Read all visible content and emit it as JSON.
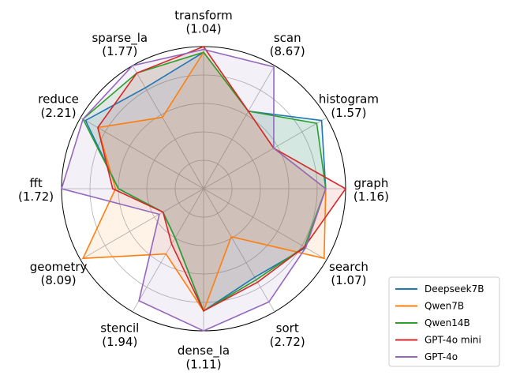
{
  "chart_data": {
    "type": "radar",
    "title": "",
    "r_range": [
      0,
      1
    ],
    "radial_grid": [
      0.2,
      0.4,
      0.6,
      0.8,
      1.0
    ],
    "grid": true,
    "legend_position": "lower-right",
    "axes": [
      {
        "name": "transform",
        "label": "(1.04)"
      },
      {
        "name": "scan",
        "label": "(8.67)"
      },
      {
        "name": "histogram",
        "label": "(1.57)"
      },
      {
        "name": "graph",
        "label": "(1.16)"
      },
      {
        "name": "search",
        "label": "(1.07)"
      },
      {
        "name": "sort",
        "label": "(2.72)"
      },
      {
        "name": "dense_la",
        "label": "(1.11)"
      },
      {
        "name": "stencil",
        "label": "(1.94)"
      },
      {
        "name": "geometry",
        "label": "(8.09)"
      },
      {
        "name": "fft",
        "label": "(1.72)"
      },
      {
        "name": "reduce",
        "label": "(2.21)"
      },
      {
        "name": "sparse_la",
        "label": "(1.77)"
      }
    ],
    "series": [
      {
        "name": "Deepseek7B",
        "color": "#1f77b4",
        "values": [
          0.96,
          0.63,
          0.96,
          0.86,
          0.83,
          0.72,
          0.86,
          0.4,
          0.33,
          0.6,
          0.96,
          0.82
        ]
      },
      {
        "name": "Qwen7B",
        "color": "#ff7f0e",
        "values": [
          0.96,
          0.63,
          0.57,
          0.86,
          0.98,
          0.39,
          0.86,
          0.53,
          0.98,
          0.62,
          0.86,
          0.58
        ]
      },
      {
        "name": "Qwen14B",
        "color": "#2ca02c",
        "values": [
          0.96,
          0.63,
          0.92,
          0.86,
          0.82,
          0.74,
          0.86,
          0.4,
          0.33,
          0.6,
          0.98,
          0.94
        ]
      },
      {
        "name": "GPT-4o mini",
        "color": "#d62728",
        "values": [
          1.0,
          0.63,
          0.57,
          1.0,
          0.82,
          0.76,
          0.86,
          0.45,
          0.33,
          0.64,
          0.86,
          0.94
        ]
      },
      {
        "name": "GPT-4o",
        "color": "#9467bd",
        "values": [
          0.98,
          0.99,
          0.57,
          0.86,
          0.83,
          0.92,
          1.0,
          0.91,
          0.36,
          1.0,
          0.98,
          1.0
        ]
      }
    ]
  },
  "legend": {
    "items": [
      "Deepseek7B",
      "Qwen7B",
      "Qwen14B",
      "GPT-4o mini",
      "GPT-4o"
    ]
  }
}
